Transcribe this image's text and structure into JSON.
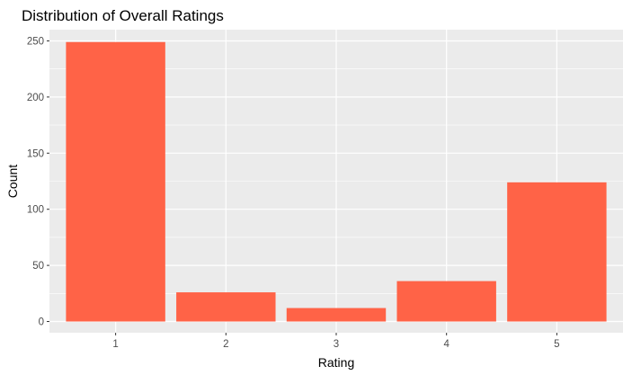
{
  "chart_data": {
    "type": "bar",
    "title": "Distribution of Overall Ratings",
    "xlabel": "Rating",
    "ylabel": "Count",
    "categories": [
      "1",
      "2",
      "3",
      "4",
      "5"
    ],
    "values": [
      249,
      26,
      12,
      36,
      124
    ],
    "ylim": [
      -10,
      260
    ],
    "yticks": [
      0,
      50,
      100,
      150,
      200,
      250
    ],
    "grid": true,
    "legend": "none",
    "colors": {
      "bar": "#FF6347",
      "panel": "#EBEBEB",
      "grid": "#FFFFFF",
      "text": "#4D4D4D"
    }
  }
}
